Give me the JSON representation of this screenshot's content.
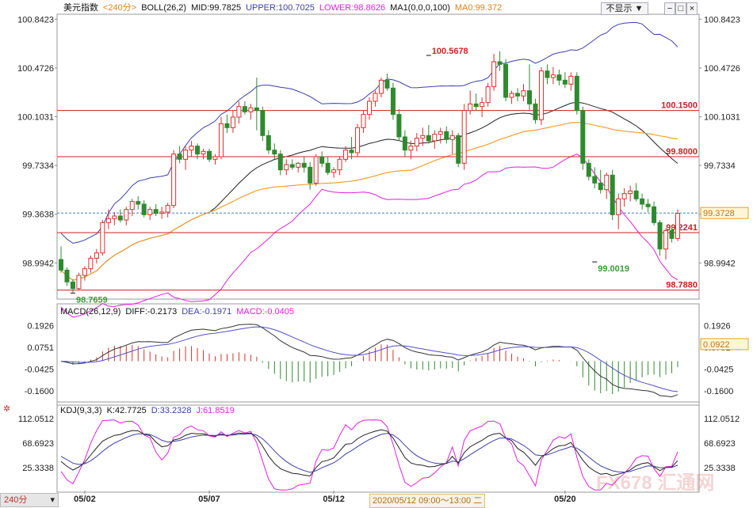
{
  "header_main": {
    "symbol": "美元指数",
    "period": "<240分>",
    "boll": "BOLL(26,2)",
    "mid": "MID:99.7825",
    "upper": "UPPER:100.7025",
    "lower": "LOWER:98.8626",
    "ma": "MA1(0,0,0,100)",
    "ma0": "MA0:99.372",
    "hide_label": "不显示"
  },
  "header_macd": {
    "name": "MACD(26,12,9)",
    "diff": "DIFF:-0.2173",
    "dea": "DEA:-0.1971",
    "macd": "MACD:-0.0405"
  },
  "header_kdj": {
    "name": "KDJ(9,3,3)",
    "k": "K:42.7725",
    "d": "D:33.2328",
    "j": "J:61.8519"
  },
  "bottom_bar": {
    "period": "240分",
    "crosshair_time": "2020/05/12 09:00～13:00 二",
    "watermark": "FX678 汇通网"
  },
  "colors": {
    "up": "#d9302c",
    "down": "#2f8a2f",
    "upper_band": "#3b3fa8",
    "mid_band": "#222222",
    "lower_band": "#e020e0",
    "ma": "#f0a030",
    "macd_diff": "#333333",
    "macd_dea": "#5050c8",
    "kdj_k": "#222222",
    "kdj_d": "#3b3fa8",
    "kdj_j": "#e020e0",
    "level": "#cc2020"
  },
  "chart_data": {
    "type": "candlestick",
    "price_axis_ticks": [
      "100.8423",
      "100.4726",
      "100.1031",
      "99.7334",
      "99.3638",
      "98.9942"
    ],
    "price_ylim": [
      98.72,
      100.88
    ],
    "current_price": "99.3728",
    "current_price_value": 99.3728,
    "level_lines": [
      {
        "value": 100.15,
        "label": "100.1500"
      },
      {
        "value": 99.8,
        "label": "99.8000"
      },
      {
        "value": 99.2241,
        "label": "99.2241"
      },
      {
        "value": 98.788,
        "label": "98.7880"
      }
    ],
    "annotations": [
      {
        "label": "100.5678",
        "value": 100.5678,
        "candle": 62
      },
      {
        "label": "98.7659",
        "value": 98.7659,
        "candle": 2
      },
      {
        "label": "99.0019",
        "value": 99.0019,
        "candle": 90
      }
    ],
    "x_tick_labels": [
      {
        "label": "05/02",
        "candle": 4
      },
      {
        "label": "05/07",
        "candle": 25
      },
      {
        "label": "05/12",
        "candle": 46
      },
      {
        "label": "05/20",
        "candle": 85
      }
    ],
    "candles": [
      [
        99.02,
        99.12,
        98.92,
        98.94
      ],
      [
        98.94,
        98.96,
        98.82,
        98.85
      ],
      [
        98.85,
        98.87,
        98.77,
        98.8
      ],
      [
        98.8,
        98.92,
        98.79,
        98.9
      ],
      [
        98.9,
        98.97,
        98.86,
        98.95
      ],
      [
        98.95,
        99.05,
        98.92,
        99.03
      ],
      [
        99.03,
        99.1,
        98.99,
        99.07
      ],
      [
        99.07,
        99.32,
        99.05,
        99.3
      ],
      [
        99.3,
        99.4,
        99.25,
        99.33
      ],
      [
        99.33,
        99.38,
        99.28,
        99.35
      ],
      [
        99.35,
        99.4,
        99.3,
        99.32
      ],
      [
        99.32,
        99.42,
        99.28,
        99.4
      ],
      [
        99.4,
        99.48,
        99.35,
        99.46
      ],
      [
        99.46,
        99.5,
        99.4,
        99.44
      ],
      [
        99.44,
        99.47,
        99.34,
        99.36
      ],
      [
        99.36,
        99.42,
        99.32,
        99.4
      ],
      [
        99.4,
        99.44,
        99.35,
        99.37
      ],
      [
        99.37,
        99.42,
        99.33,
        99.38
      ],
      [
        99.38,
        99.45,
        99.34,
        99.43
      ],
      [
        99.43,
        99.85,
        99.41,
        99.82
      ],
      [
        99.82,
        99.88,
        99.75,
        99.78
      ],
      [
        99.78,
        99.88,
        99.7,
        99.85
      ],
      [
        99.85,
        99.92,
        99.8,
        99.88
      ],
      [
        99.88,
        99.9,
        99.78,
        99.82
      ],
      [
        99.82,
        99.86,
        99.78,
        99.84
      ],
      [
        99.84,
        99.86,
        99.76,
        99.78
      ],
      [
        99.78,
        99.82,
        99.74,
        99.8
      ],
      [
        99.8,
        100.1,
        99.78,
        100.05
      ],
      [
        100.05,
        100.12,
        99.98,
        100.02
      ],
      [
        100.02,
        100.15,
        99.98,
        100.1
      ],
      [
        100.1,
        100.22,
        100.05,
        100.18
      ],
      [
        100.18,
        100.22,
        100.12,
        100.14
      ],
      [
        100.14,
        100.2,
        100.08,
        100.17
      ],
      [
        100.17,
        100.4,
        100.0,
        100.15
      ],
      [
        100.15,
        100.18,
        99.92,
        99.96
      ],
      [
        99.96,
        100.0,
        99.82,
        99.85
      ],
      [
        99.85,
        99.9,
        99.78,
        99.82
      ],
      [
        99.82,
        99.85,
        99.66,
        99.7
      ],
      [
        99.7,
        99.78,
        99.66,
        99.74
      ],
      [
        99.74,
        99.78,
        99.7,
        99.72
      ],
      [
        99.72,
        99.76,
        99.68,
        99.75
      ],
      [
        99.75,
        99.8,
        99.68,
        99.72
      ],
      [
        99.72,
        99.76,
        99.55,
        99.6
      ],
      [
        99.6,
        99.82,
        99.58,
        99.8
      ],
      [
        99.8,
        99.84,
        99.72,
        99.75
      ],
      [
        99.75,
        99.8,
        99.66,
        99.68
      ],
      [
        99.68,
        99.72,
        99.64,
        99.7
      ],
      [
        99.7,
        99.8,
        99.66,
        99.78
      ],
      [
        99.78,
        99.88,
        99.76,
        99.85
      ],
      [
        99.85,
        99.95,
        99.78,
        99.83
      ],
      [
        99.83,
        100.05,
        99.8,
        100.02
      ],
      [
        100.02,
        100.15,
        99.98,
        100.12
      ],
      [
        100.12,
        100.25,
        100.08,
        100.22
      ],
      [
        100.22,
        100.3,
        100.18,
        100.28
      ],
      [
        100.28,
        100.4,
        100.25,
        100.38
      ],
      [
        100.38,
        100.43,
        100.3,
        100.32
      ],
      [
        100.32,
        100.36,
        100.08,
        100.12
      ],
      [
        100.12,
        100.16,
        99.92,
        99.95
      ],
      [
        99.95,
        100.0,
        99.8,
        99.85
      ],
      [
        99.85,
        99.92,
        99.78,
        99.88
      ],
      [
        99.88,
        99.98,
        99.84,
        99.94
      ],
      [
        99.94,
        100.02,
        99.88,
        99.96
      ],
      [
        99.96,
        100.04,
        99.9,
        99.92
      ],
      [
        99.92,
        100.0,
        99.86,
        99.97
      ],
      [
        99.97,
        100.02,
        99.9,
        99.99
      ],
      [
        99.99,
        100.03,
        99.9,
        99.93
      ],
      [
        99.93,
        100.0,
        99.82,
        99.96
      ],
      [
        99.96,
        99.98,
        99.72,
        99.75
      ],
      [
        99.75,
        100.2,
        99.7,
        100.15
      ],
      [
        100.15,
        100.3,
        100.12,
        100.2
      ],
      [
        100.2,
        100.28,
        100.15,
        100.18
      ],
      [
        100.18,
        100.25,
        100.1,
        100.21
      ],
      [
        100.21,
        100.36,
        100.18,
        100.33
      ],
      [
        100.33,
        100.58,
        100.3,
        100.52
      ],
      [
        100.52,
        100.6,
        100.45,
        100.5
      ],
      [
        100.5,
        100.54,
        100.22,
        100.25
      ],
      [
        100.25,
        100.3,
        100.2,
        100.28
      ],
      [
        100.28,
        100.32,
        100.22,
        100.26
      ],
      [
        100.26,
        100.35,
        100.22,
        100.3
      ],
      [
        100.3,
        100.5,
        100.15,
        100.2
      ],
      [
        100.2,
        100.24,
        100.05,
        100.08
      ],
      [
        100.08,
        100.48,
        100.04,
        100.45
      ],
      [
        100.45,
        100.5,
        100.35,
        100.4
      ],
      [
        100.4,
        100.48,
        100.35,
        100.42
      ],
      [
        100.42,
        100.46,
        100.34,
        100.38
      ],
      [
        100.38,
        100.44,
        100.32,
        100.35
      ],
      [
        100.35,
        100.44,
        100.3,
        100.41
      ],
      [
        100.41,
        100.44,
        100.12,
        100.15
      ],
      [
        100.15,
        100.18,
        99.7,
        99.75
      ],
      [
        99.75,
        99.78,
        99.62,
        99.65
      ],
      [
        99.65,
        99.72,
        99.56,
        99.6
      ],
      [
        99.6,
        99.7,
        99.52,
        99.55
      ],
      [
        99.55,
        99.68,
        99.48,
        99.66
      ],
      [
        99.66,
        99.7,
        99.32,
        99.36
      ],
      [
        99.36,
        99.52,
        99.25,
        99.48
      ],
      [
        99.48,
        99.56,
        99.42,
        99.52
      ],
      [
        99.52,
        99.58,
        99.46,
        99.54
      ],
      [
        99.54,
        99.6,
        99.46,
        99.48
      ],
      [
        99.48,
        99.52,
        99.4,
        99.44
      ],
      [
        99.44,
        99.48,
        99.38,
        99.42
      ],
      [
        99.42,
        99.46,
        99.28,
        99.3
      ],
      [
        99.3,
        99.32,
        99.05,
        99.1
      ],
      [
        99.1,
        99.26,
        99.02,
        99.24
      ],
      [
        99.24,
        99.26,
        99.15,
        99.18
      ],
      [
        99.18,
        99.4,
        99.16,
        99.37
      ]
    ],
    "macd": {
      "axis_ticks": [
        "0.1926",
        "0.0751",
        "-0.0425",
        "-0.1600"
      ],
      "ylim": [
        -0.22,
        0.25
      ],
      "current": "0.0922",
      "current_value": 0.0922
    },
    "kdj": {
      "axis_ticks": [
        "112.0512",
        "68.6923",
        "25.3338"
      ],
      "ylim": [
        -15,
        125
      ]
    }
  }
}
